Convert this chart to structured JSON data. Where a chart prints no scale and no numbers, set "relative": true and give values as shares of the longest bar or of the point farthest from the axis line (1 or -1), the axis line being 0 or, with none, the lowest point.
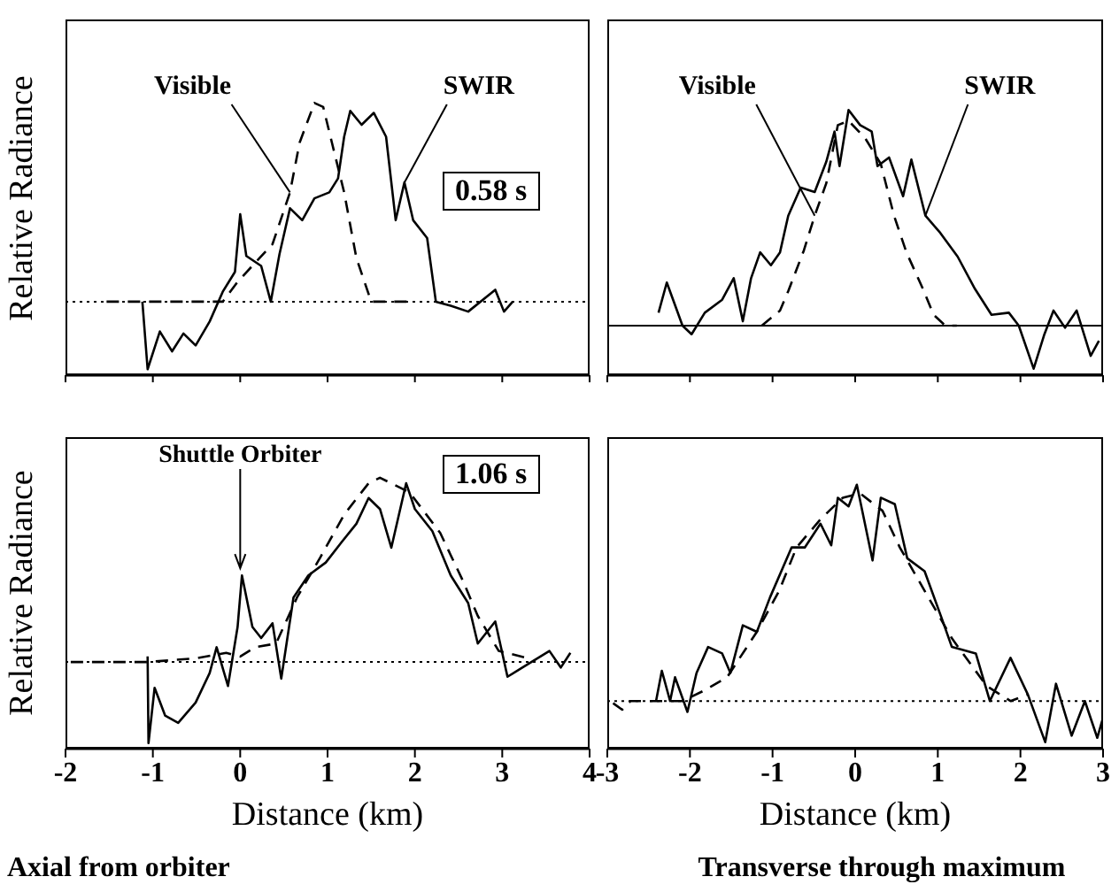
{
  "chart_data": [
    {
      "type": "line",
      "relative": true,
      "ylabel": "Relative Radiance",
      "xlim": [
        -2,
        4
      ],
      "xticks": [
        -2,
        -1,
        0,
        1,
        2,
        3,
        4
      ],
      "tick_labels": false,
      "annotations": [
        "0.58 s"
      ],
      "ref_lines": [
        {
          "axis": "y",
          "value": 0,
          "line_style": "dotted"
        }
      ],
      "series": [
        {
          "name": "Visible",
          "color": "#000000",
          "line_style": "dashed",
          "x": [
            -1.53,
            -0.2,
            -0.03,
            0.37,
            0.57,
            0.68,
            0.85,
            0.95,
            1.05,
            1.19,
            1.33,
            1.5,
            2.0
          ],
          "values": [
            0,
            0,
            0.1,
            0.29,
            0.55,
            0.8,
            1.0,
            0.98,
            0.8,
            0.55,
            0.22,
            0,
            0
          ]
        },
        {
          "name": "SWIR",
          "color": "#000000",
          "line_style": "solid",
          "x": [
            -1.12,
            -1.06,
            -0.92,
            -0.78,
            -0.65,
            -0.51,
            -0.35,
            -0.2,
            -0.06,
            0,
            0.07,
            0.24,
            0.35,
            0.45,
            0.57,
            0.71,
            0.85,
            1.02,
            1.12,
            1.19,
            1.26,
            1.39,
            1.53,
            1.67,
            1.78,
            1.88,
            1.98,
            2.14,
            2.24,
            2.41,
            2.61,
            2.92,
            3.02,
            3.12
          ],
          "values": [
            0,
            -0.34,
            -0.15,
            -0.25,
            -0.16,
            -0.22,
            -0.1,
            0.05,
            0.15,
            0.44,
            0.23,
            0.18,
            0,
            0.24,
            0.47,
            0.41,
            0.52,
            0.55,
            0.62,
            0.83,
            0.96,
            0.89,
            0.95,
            0.83,
            0.41,
            0.6,
            0.41,
            0.32,
            0,
            -0.02,
            -0.05,
            0.06,
            -0.05,
            0
          ]
        }
      ]
    },
    {
      "type": "line",
      "relative": true,
      "xlim": [
        -3,
        3
      ],
      "xticks": [
        -3,
        -2,
        -1,
        0,
        1,
        2,
        3
      ],
      "tick_labels": false,
      "ref_lines": [
        {
          "axis": "y",
          "value": 0,
          "line_style": "solid"
        }
      ],
      "series": [
        {
          "name": "Visible",
          "color": "#000000",
          "line_style": "dashed",
          "x": [
            -1.13,
            -0.91,
            -0.81,
            -0.62,
            -0.49,
            -0.35,
            -0.21,
            -0.08,
            0.12,
            0.31,
            0.47,
            0.62,
            0.82,
            0.95,
            1.09,
            1.23
          ],
          "values": [
            0,
            0.07,
            0.16,
            0.35,
            0.51,
            0.66,
            0.93,
            0.95,
            0.87,
            0.75,
            0.51,
            0.34,
            0.17,
            0.05,
            0,
            0
          ]
        },
        {
          "name": "SWIR",
          "color": "#000000",
          "line_style": "solid",
          "x": [
            -2.38,
            -2.28,
            -2.09,
            -1.98,
            -1.82,
            -1.61,
            -1.47,
            -1.36,
            -1.26,
            -1.15,
            -1.02,
            -0.91,
            -0.81,
            -0.66,
            -0.49,
            -0.35,
            -0.25,
            -0.19,
            -0.08,
            0.06,
            0.2,
            0.27,
            0.41,
            0.58,
            0.68,
            0.85,
            1.03,
            1.24,
            1.45,
            1.65,
            1.86,
            1.98,
            2.16,
            2.29,
            2.4,
            2.54,
            2.68,
            2.85,
            2.95
          ],
          "values": [
            0.06,
            0.2,
            0,
            -0.04,
            0.06,
            0.12,
            0.22,
            0.02,
            0.22,
            0.34,
            0.28,
            0.34,
            0.51,
            0.64,
            0.62,
            0.76,
            0.9,
            0.74,
            1.0,
            0.93,
            0.9,
            0.74,
            0.78,
            0.6,
            0.77,
            0.51,
            0.43,
            0.32,
            0.17,
            0.05,
            0.06,
            0,
            -0.2,
            -0.04,
            0.07,
            -0.01,
            0.07,
            -0.14,
            -0.07
          ]
        }
      ]
    },
    {
      "type": "line",
      "relative": true,
      "title": "Axial from orbiter",
      "ylabel": "Relative Radiance",
      "xlabel": "Distance (km)",
      "xlim": [
        -2,
        4
      ],
      "xticks": [
        -2,
        -1,
        0,
        1,
        2,
        3,
        4
      ],
      "tick_labels": "x",
      "annotations": [
        "1.06 s",
        {
          "text": "Shuttle Orbiter",
          "x": 0,
          "y": 0.47
        }
      ],
      "ref_lines": [
        {
          "axis": "y",
          "value": 0,
          "line_style": "dotted"
        }
      ],
      "series": [
        {
          "color": "#000000",
          "line_style": "dashed",
          "x": [
            -1.94,
            -1.06,
            -0.51,
            -0.16,
            0,
            0.17,
            0.41,
            0.65,
            0.92,
            1.19,
            1.47,
            1.6,
            1.94,
            2.29,
            2.55,
            2.72,
            2.96,
            3.3
          ],
          "values": [
            0,
            0,
            0.02,
            0.05,
            0.03,
            0.08,
            0.1,
            0.35,
            0.57,
            0.8,
            0.97,
            1.0,
            0.92,
            0.7,
            0.44,
            0.25,
            0.06,
            0.02
          ]
        },
        {
          "color": "#000000",
          "line_style": "solid",
          "x": [
            -1.06,
            -1.05,
            -0.98,
            -0.86,
            -0.71,
            -0.51,
            -0.35,
            -0.27,
            -0.14,
            -0.03,
            0.02,
            0.14,
            0.24,
            0.37,
            0.47,
            0.61,
            0.78,
            0.98,
            1.16,
            1.33,
            1.47,
            1.6,
            1.73,
            1.9,
            2.0,
            2.2,
            2.41,
            2.61,
            2.72,
            2.92,
            3.06,
            3.23,
            3.54,
            3.67,
            3.78
          ],
          "values": [
            0.03,
            -0.44,
            -0.14,
            -0.29,
            -0.33,
            -0.22,
            -0.06,
            0.08,
            -0.13,
            0.19,
            0.47,
            0.19,
            0.13,
            0.21,
            -0.09,
            0.35,
            0.47,
            0.54,
            0.65,
            0.75,
            0.89,
            0.83,
            0.62,
            0.97,
            0.83,
            0.71,
            0.47,
            0.32,
            0.1,
            0.22,
            -0.08,
            -0.03,
            0.06,
            -0.03,
            0.05
          ]
        }
      ]
    },
    {
      "type": "line",
      "relative": true,
      "title": "Transverse through maximum",
      "xlabel": "Distance (km)",
      "xlim": [
        -3,
        3
      ],
      "xticks": [
        -3,
        -2,
        -1,
        0,
        1,
        2,
        3
      ],
      "tick_labels": "x",
      "ref_lines": [
        {
          "axis": "y",
          "value": 0,
          "line_style": "dotted"
        }
      ],
      "series": [
        {
          "color": "#000000",
          "line_style": "dashed",
          "x": [
            -2.93,
            -2.82,
            -2.72,
            -2.09,
            -1.82,
            -1.55,
            -1.19,
            -0.92,
            -0.71,
            -0.42,
            -0.15,
            0.06,
            0.33,
            0.54,
            0.84,
            1.17,
            1.59,
            1.88,
            2.09
          ],
          "values": [
            -0.01,
            -0.04,
            0,
            0,
            0.05,
            0.11,
            0.32,
            0.51,
            0.71,
            0.84,
            0.94,
            0.96,
            0.88,
            0.71,
            0.51,
            0.29,
            0.07,
            0,
            0.03
          ]
        },
        {
          "color": "#000000",
          "line_style": "solid",
          "x": [
            -2.41,
            -2.34,
            -2.24,
            -2.18,
            -2.03,
            -1.92,
            -1.78,
            -1.61,
            -1.51,
            -1.36,
            -1.19,
            -1.03,
            -0.77,
            -0.61,
            -0.42,
            -0.29,
            -0.21,
            -0.08,
            0.02,
            0.21,
            0.31,
            0.48,
            0.63,
            0.84,
            1.05,
            1.17,
            1.46,
            1.63,
            1.88,
            2.09,
            2.3,
            2.43,
            2.62,
            2.78,
            2.93,
            2.99
          ],
          "values": [
            0,
            0.14,
            0,
            0.11,
            -0.05,
            0.13,
            0.25,
            0.22,
            0.13,
            0.35,
            0.32,
            0.48,
            0.71,
            0.71,
            0.82,
            0.72,
            0.94,
            0.9,
            1.0,
            0.65,
            0.94,
            0.91,
            0.66,
            0.6,
            0.38,
            0.25,
            0.22,
            0,
            0.2,
            0.03,
            -0.19,
            0.08,
            -0.16,
            0,
            -0.17,
            -0.09
          ]
        }
      ]
    }
  ]
}
